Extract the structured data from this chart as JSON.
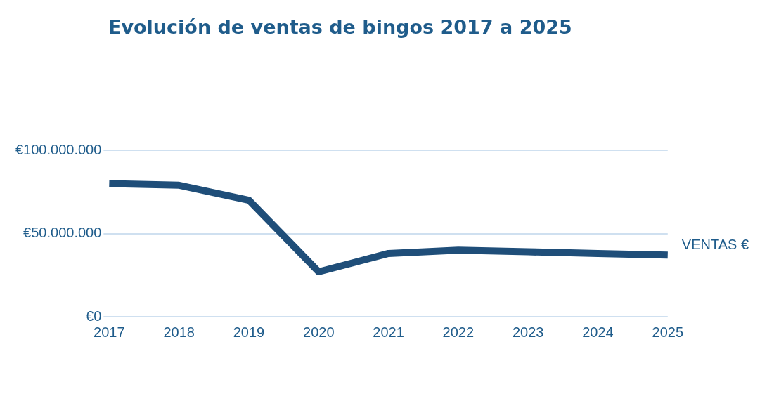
{
  "chart_data": {
    "type": "line",
    "title": "Evolución de ventas de bingos 2017 a 2025",
    "categories": [
      "2017",
      "2018",
      "2019",
      "2020",
      "2021",
      "2022",
      "2023",
      "2024",
      "2025"
    ],
    "series": [
      {
        "name": "VENTAS €",
        "color": "#1f4e79",
        "values": [
          80000000,
          79000000,
          70000000,
          27000000,
          38000000,
          40000000,
          39000000,
          38000000,
          37000000
        ]
      }
    ],
    "ylim": [
      0,
      100000000
    ],
    "yticks": [
      {
        "value": 0,
        "label": "€0"
      },
      {
        "value": 50000000,
        "label": "€50.000.000"
      },
      {
        "value": 100000000,
        "label": "€100.000.000"
      }
    ],
    "grid": "y",
    "legend": "right",
    "marker": "none",
    "line_style": "solid"
  }
}
